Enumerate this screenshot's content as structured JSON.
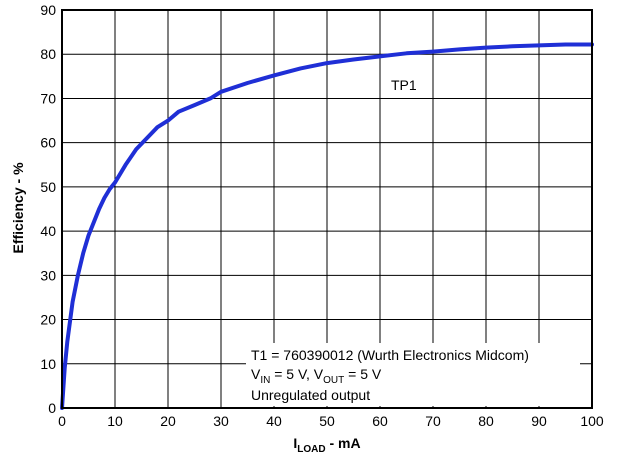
{
  "chart_data": {
    "type": "line",
    "title": "",
    "xlabel": {
      "main": "I",
      "sub": "LOAD",
      "rest": " - mA"
    },
    "ylabel": "Efficiency - %",
    "xlim": [
      0,
      100
    ],
    "ylim": [
      0,
      90
    ],
    "xticks": [
      "0",
      "10",
      "20",
      "30",
      "40",
      "50",
      "60",
      "70",
      "80",
      "90",
      "100"
    ],
    "yticks": [
      "0",
      "10",
      "20",
      "30",
      "40",
      "50",
      "60",
      "70",
      "80",
      "90"
    ],
    "grid": true,
    "line_color": "#1f2fd6",
    "series": [
      {
        "name": "",
        "x": [
          0,
          0.5,
          1,
          2,
          3,
          4,
          5,
          6,
          7,
          8,
          9,
          10,
          12,
          14,
          16,
          18,
          20,
          22,
          25,
          28,
          30,
          35,
          40,
          45,
          50,
          55,
          60,
          65,
          70,
          75,
          80,
          85,
          90,
          95,
          100
        ],
        "y": [
          0,
          9,
          15,
          24,
          30,
          35,
          39,
          42,
          45,
          47.5,
          49.5,
          51,
          55,
          58.5,
          61,
          63.5,
          65,
          67,
          68.5,
          70,
          71.5,
          73.5,
          75.2,
          76.8,
          78,
          78.8,
          79.5,
          80.2,
          80.6,
          81.1,
          81.5,
          81.8,
          82,
          82.2,
          82.2
        ]
      }
    ],
    "annotations": {
      "curve_label": "TP1",
      "note_line1": "T1 = 760390012 (Wurth Electronics Midcom)",
      "note_line2": {
        "v1": "V",
        "v1_sub": "IN",
        "mid": " = 5 V, V",
        "v2_sub": "OUT",
        "end": " = 5 V"
      },
      "note_line3": "Unregulated output"
    }
  }
}
